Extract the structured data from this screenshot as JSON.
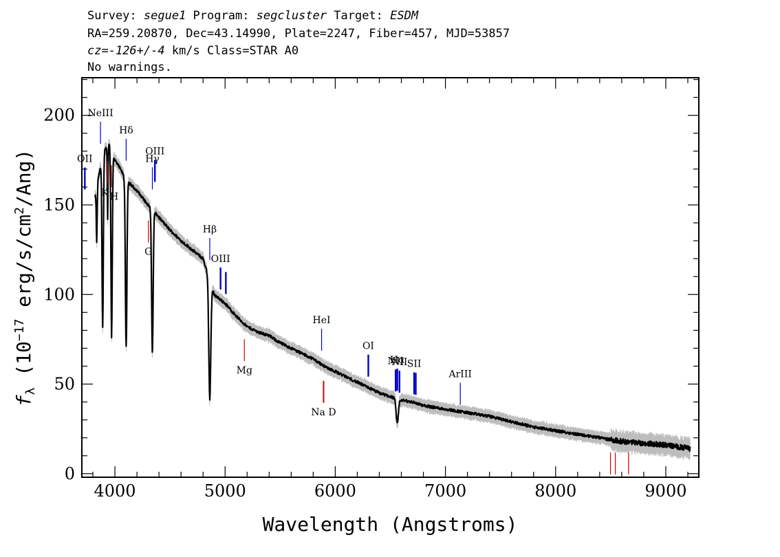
{
  "header": {
    "line1": {
      "survey_label": "Survey: ",
      "survey": "segue1",
      "program_label": " Program: ",
      "program": "segcluster",
      "target_label": " Target: ",
      "target": "ESDM"
    },
    "line2": "RA=259.20870, Dec=43.14990, Plate=2247, Fiber=457, MJD=53857",
    "line3": {
      "cz": "cz=",
      "value": "-126+/-4",
      "rest": " km/s Class=STAR A0"
    },
    "line4": "No warnings."
  },
  "colors": {
    "spectrum": "#000000",
    "error_band": "#bdbdbd",
    "emission_lines": "#0000cc",
    "absorption_lines": "#cc0000",
    "frame": "#000000"
  },
  "chart_data": {
    "type": "line",
    "title": "",
    "xlabel": "Wavelength (Angstroms)",
    "ylabel": "f_λ (10^-17 erg/s/cm^2/Ang)",
    "ylabel_parts": {
      "f": "f",
      "lambda": "λ",
      "open": " (10",
      "exp1": "−17",
      "mid": " erg/s/cm",
      "exp2": "2",
      "close": "/Ang)"
    },
    "xlim": [
      3700,
      9300
    ],
    "ylim": [
      -2,
      221
    ],
    "x_ticks": [
      4000,
      5000,
      6000,
      7000,
      8000,
      9000
    ],
    "x_tick_labels": [
      "4000",
      "5000",
      "6000",
      "7000",
      "8000",
      "9000"
    ],
    "y_ticks": [
      0,
      50,
      100,
      150,
      200
    ],
    "y_tick_labels": [
      "0",
      "50",
      "100",
      "150",
      "200"
    ],
    "x_minor_step": 200,
    "y_minor_step": 10,
    "grid": false,
    "continuum": [
      [
        3820,
        154
      ],
      [
        3850,
        165
      ],
      [
        3900,
        180
      ],
      [
        3950,
        184
      ],
      [
        4000,
        175
      ],
      [
        4050,
        170
      ],
      [
        4100,
        164
      ],
      [
        4200,
        158
      ],
      [
        4300,
        150
      ],
      [
        4400,
        143
      ],
      [
        4500,
        136
      ],
      [
        4600,
        130
      ],
      [
        4700,
        125
      ],
      [
        4800,
        120
      ],
      [
        4900,
        100
      ],
      [
        5000,
        95
      ],
      [
        5100,
        88
      ],
      [
        5200,
        82
      ],
      [
        5300,
        79
      ],
      [
        5400,
        77
      ],
      [
        5500,
        73
      ],
      [
        5600,
        70
      ],
      [
        5700,
        67
      ],
      [
        5800,
        64
      ],
      [
        5900,
        60
      ],
      [
        6000,
        57
      ],
      [
        6100,
        54
      ],
      [
        6200,
        51
      ],
      [
        6300,
        48
      ],
      [
        6400,
        45
      ],
      [
        6500,
        43
      ],
      [
        6600,
        41
      ],
      [
        6700,
        40
      ],
      [
        6800,
        38
      ],
      [
        6900,
        37
      ],
      [
        7000,
        36
      ],
      [
        7200,
        34
      ],
      [
        7400,
        32
      ],
      [
        7600,
        29
      ],
      [
        7800,
        26
      ],
      [
        8000,
        24
      ],
      [
        8200,
        22
      ],
      [
        8400,
        20
      ],
      [
        8600,
        18
      ],
      [
        8800,
        17
      ],
      [
        9000,
        16
      ],
      [
        9220,
        14
      ]
    ],
    "absorption_features": [
      {
        "center": 3835,
        "depth": 30,
        "width": 4
      },
      {
        "center": 3889,
        "depth": 95,
        "width": 6
      },
      {
        "center": 3934,
        "depth": 40,
        "width": 3
      },
      {
        "center": 3970,
        "depth": 105,
        "width": 6
      },
      {
        "center": 4102,
        "depth": 93,
        "width": 7
      },
      {
        "center": 4340,
        "depth": 80,
        "width": 7
      },
      {
        "center": 4861,
        "depth": 66,
        "width": 9
      },
      {
        "center": 6563,
        "depth": 14,
        "width": 10
      }
    ],
    "emission_markers": [
      {
        "label": "OII",
        "wave": 3727
      },
      {
        "label": "NeIII",
        "wave": 3869
      },
      {
        "label": "Hδ",
        "wave": 4102
      },
      {
        "label": "Hγ",
        "wave": 4340
      },
      {
        "label": "OIII",
        "wave": 4363
      },
      {
        "label": "Hβ",
        "wave": 4861
      },
      {
        "label": "OIII",
        "wave": 4959
      },
      {
        "label": "",
        "wave": 5007
      },
      {
        "label": "HeI",
        "wave": 5876
      },
      {
        "label": "OI",
        "wave": 6300
      },
      {
        "label": "NII",
        "wave": 6548
      },
      {
        "label": "Hα",
        "wave": 6563
      },
      {
        "label": "NII",
        "wave": 6583
      },
      {
        "label": "SII",
        "wave": 6716
      },
      {
        "label": "",
        "wave": 6731
      },
      {
        "label": "ArIII",
        "wave": 7135
      }
    ],
    "absorption_markers": [
      {
        "label": "K",
        "wave": 3934
      },
      {
        "label": "H",
        "wave": 3969
      },
      {
        "label": "G",
        "wave": 4304
      },
      {
        "label": "Mg",
        "wave": 5175
      },
      {
        "label": "Na D",
        "wave": 5894
      },
      {
        "label": "",
        "wave": 8498
      },
      {
        "label": "",
        "wave": 8542
      },
      {
        "label": "",
        "wave": 8662
      }
    ]
  }
}
